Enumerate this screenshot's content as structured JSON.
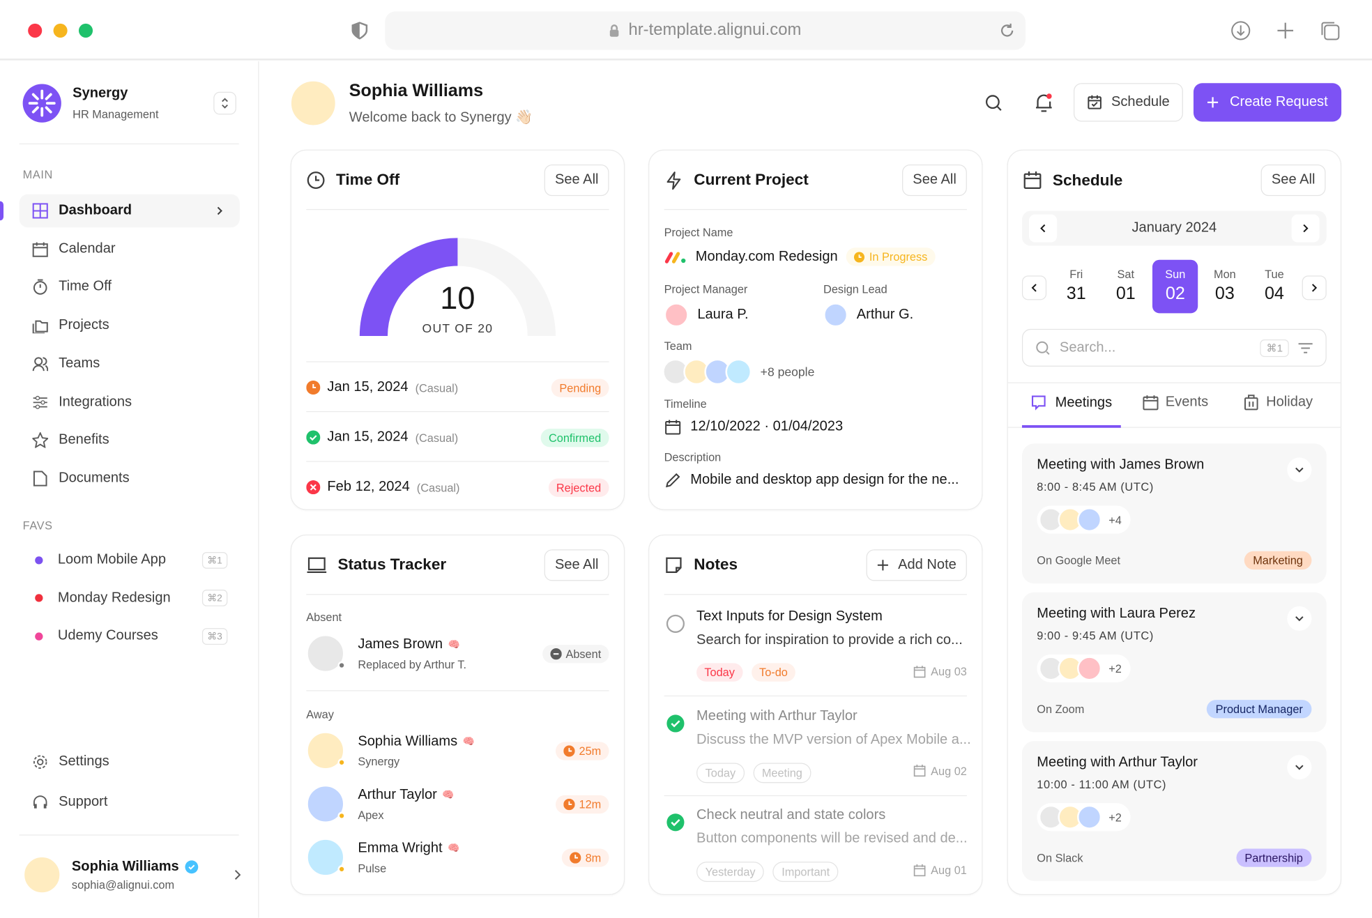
{
  "browser": {
    "url": "hr-template.alignui.com"
  },
  "brand": {
    "name": "Synergy",
    "subtitle": "HR Management"
  },
  "sidebar": {
    "main_label": "MAIN",
    "items": [
      {
        "label": "Dashboard",
        "icon": "grid-icon"
      },
      {
        "label": "Calendar",
        "icon": "calendar-icon"
      },
      {
        "label": "Time Off",
        "icon": "timer-icon"
      },
      {
        "label": "Projects",
        "icon": "folders-icon"
      },
      {
        "label": "Teams",
        "icon": "users-icon"
      },
      {
        "label": "Integrations",
        "icon": "sliders-icon"
      },
      {
        "label": "Benefits",
        "icon": "star-icon"
      },
      {
        "label": "Documents",
        "icon": "document-icon"
      }
    ],
    "favs_label": "FAVS",
    "favs": [
      {
        "label": "Loom Mobile App",
        "shortcut": "⌘1",
        "color": "#7c52f0"
      },
      {
        "label": "Monday Redesign",
        "shortcut": "⌘2",
        "color": "#f0303d"
      },
      {
        "label": "Udemy Courses",
        "shortcut": "⌘3",
        "color": "#f0469a"
      }
    ],
    "settings": "Settings",
    "support": "Support",
    "user": {
      "name": "Sophia Williams",
      "email": "sophia@alignui.com"
    }
  },
  "header": {
    "name": "Sophia Williams",
    "welcome": "Welcome back to Synergy 👋🏻",
    "schedule": "Schedule",
    "create": "Create Request"
  },
  "timeoff": {
    "title": "Time Off",
    "see_all": "See All",
    "used": 10,
    "total": 20,
    "value": "10",
    "caption": "OUT OF 20",
    "items": [
      {
        "date": "Jan 15, 2024",
        "type": "(Casual)",
        "status": "Pending",
        "color": "#f17b2c"
      },
      {
        "date": "Jan 15, 2024",
        "type": "(Casual)",
        "status": "Confirmed",
        "color": "#1fc16b"
      },
      {
        "date": "Feb 12, 2024",
        "type": "(Casual)",
        "status": "Rejected",
        "color": "#fb3748"
      }
    ]
  },
  "project": {
    "title": "Current Project",
    "see_all": "See All",
    "name_label": "Project Name",
    "name": "Monday.com Redesign",
    "status": "In Progress",
    "manager_label": "Project Manager",
    "manager": "Laura P.",
    "lead_label": "Design Lead",
    "lead": "Arthur G.",
    "team_label": "Team",
    "team_more": "+8 people",
    "timeline_label": "Timeline",
    "timeline": "12/10/2022 · 01/04/2023",
    "desc_label": "Description",
    "desc": "Mobile and desktop app design for the ne..."
  },
  "schedule": {
    "title": "Schedule",
    "see_all": "See All",
    "month": "January 2024",
    "days": [
      {
        "d": "Fri",
        "n": "31"
      },
      {
        "d": "Sat",
        "n": "01"
      },
      {
        "d": "Sun",
        "n": "02",
        "selected": true
      },
      {
        "d": "Mon",
        "n": "03"
      },
      {
        "d": "Tue",
        "n": "04"
      }
    ],
    "search_placeholder": "Search...",
    "search_kbd": "⌘1",
    "tabs": [
      "Meetings",
      "Events",
      "Holiday"
    ],
    "meetings": [
      {
        "title": "Meeting with James Brown",
        "time": "8:00 - 8:45 AM (UTC)",
        "more": "+4",
        "where": "On Google Meet",
        "tag": "Marketing",
        "tag_bg": "#ffdac2",
        "tag_fg": "#6e330c"
      },
      {
        "title": "Meeting with Laura Perez",
        "time": "9:00 - 9:45 AM (UTC)",
        "more": "+2",
        "where": "On Zoom",
        "tag": "Product Manager",
        "tag_bg": "#c2d6ff",
        "tag_fg": "#162664"
      },
      {
        "title": "Meeting with Arthur Taylor",
        "time": "10:00 - 11:00 AM (UTC)",
        "more": "+2",
        "where": "On Slack",
        "tag": "Partnership",
        "tag_bg": "#cac0ff",
        "tag_fg": "#2b1664"
      }
    ]
  },
  "status": {
    "title": "Status Tracker",
    "see_all": "See All",
    "absent_label": "Absent",
    "away_label": "Away",
    "absent": {
      "name": "James Brown",
      "sub": "Replaced by Arthur T.",
      "badge": "Absent"
    },
    "away": [
      {
        "name": "Sophia Williams",
        "sub": "Synergy",
        "time": "25m"
      },
      {
        "name": "Arthur Taylor",
        "sub": "Apex",
        "time": "12m"
      },
      {
        "name": "Emma Wright",
        "sub": "Pulse",
        "time": "8m"
      }
    ]
  },
  "notes": {
    "title": "Notes",
    "add": "Add Note",
    "items": [
      {
        "title": "Text Inputs for Design System",
        "desc": "Search for inspiration to provide a rich co...",
        "tags": [
          "Today",
          "To-do"
        ],
        "date": "Aug 03",
        "done": false
      },
      {
        "title": "Meeting with Arthur Taylor",
        "desc": "Discuss the MVP version of Apex Mobile a...",
        "tags": [
          "Today",
          "Meeting"
        ],
        "date": "Aug 02",
        "done": true
      },
      {
        "title": "Check neutral and state colors",
        "desc": "Button components will be revised and de...",
        "tags": [
          "Yesterday",
          "Important"
        ],
        "date": "Aug 01",
        "done": true
      }
    ]
  },
  "colors": {
    "primary": "#7d52f4",
    "pending": "#f17b2c",
    "success": "#1fc16b",
    "error": "#fb3748",
    "warning": "#f6b51e"
  }
}
